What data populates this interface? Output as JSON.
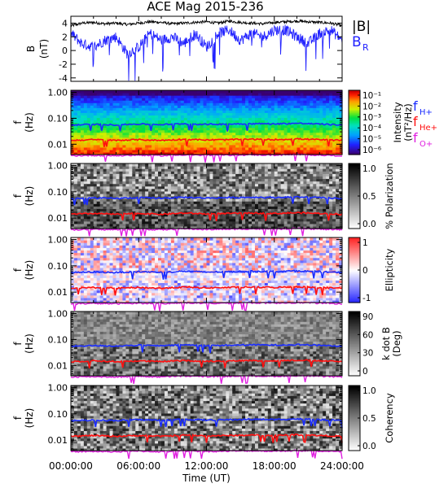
{
  "title": "ACE Mag 2015-236",
  "colors": {
    "B_total": "#000000",
    "B_R": "#2222ff",
    "f_H": "#1a2cff",
    "f_He": "#ff1010",
    "f_O": "#e020e0"
  },
  "chart_data": [
    {
      "id": "mag",
      "type": "line",
      "ylabel": "B",
      "yunit": "(nT)",
      "ylim": [
        -4.5,
        5
      ],
      "yticks": [
        "4",
        "2",
        "0",
        "-2",
        "-4"
      ],
      "yticks_values": [
        4,
        2,
        0,
        -2,
        -4
      ],
      "legend": [
        "|B|",
        "B",
        "R"
      ],
      "series": [
        {
          "name": "|B|",
          "key": "B_total",
          "x": [
            0,
            1,
            2,
            3,
            4,
            5,
            6,
            7,
            8,
            9,
            10,
            11,
            12,
            13,
            14,
            15,
            16,
            17,
            18,
            19,
            20,
            21,
            22,
            23,
            24
          ],
          "values": [
            3.6,
            4.0,
            4.1,
            3.9,
            4.0,
            3.8,
            4.0,
            4.2,
            4.1,
            3.9,
            4.0,
            4.1,
            4.2,
            4.0,
            4.3,
            4.1,
            4.0,
            3.9,
            4.1,
            4.2,
            4.3,
            4.2,
            4.1,
            4.0,
            3.6
          ]
        },
        {
          "name": "BR",
          "key": "B_R",
          "x": [
            0,
            1,
            2,
            3,
            4,
            5,
            6,
            7,
            8,
            9,
            10,
            11,
            12,
            13,
            14,
            15,
            16,
            17,
            18,
            19,
            20,
            21,
            22,
            23,
            24
          ],
          "values": [
            2.5,
            1.0,
            0.5,
            1.5,
            2.0,
            -0.5,
            0.5,
            2.5,
            1.5,
            2.0,
            1.0,
            2.5,
            0.5,
            2.5,
            3.0,
            1.5,
            2.5,
            2.0,
            3.0,
            3.0,
            2.0,
            1.0,
            2.5,
            3.0,
            1.5
          ]
        }
      ]
    },
    {
      "id": "intensity",
      "type": "heatmap",
      "ylabel": "f",
      "yunit": "(Hz)",
      "ylim": [
        0.004,
        1.2
      ],
      "yscale": "log",
      "yticks": [
        "1.00",
        "0.10",
        "0.01"
      ],
      "yticks_values": [
        1.0,
        0.1,
        0.01
      ],
      "colorbar_label": "Intensity",
      "colorbar_unit": "(nT²/Hz)",
      "colorbar_ticks": [
        "10⁻¹",
        "10⁻²",
        "10⁻³",
        "10⁻⁴",
        "10⁻⁵",
        "10⁻⁶"
      ],
      "legend": [
        "f",
        "H+",
        "f",
        "He+",
        "f",
        "O+"
      ]
    },
    {
      "id": "polarization",
      "type": "heatmap",
      "ylabel": "f",
      "yunit": "(Hz)",
      "ylim": [
        0.004,
        1.2
      ],
      "yscale": "log",
      "yticks": [
        "1.00",
        "0.10",
        "0.01"
      ],
      "yticks_values": [
        1.0,
        0.1,
        0.01
      ],
      "colorbar_label": "% Polarization",
      "colorbar_ticks": [
        "1.0",
        "0.5",
        "0.0"
      ]
    },
    {
      "id": "ellipticity",
      "type": "heatmap",
      "ylabel": "f",
      "yunit": "(Hz)",
      "ylim": [
        0.004,
        1.2
      ],
      "yscale": "log",
      "yticks": [
        "1.00",
        "0.10",
        "0.01"
      ],
      "yticks_values": [
        1.0,
        0.1,
        0.01
      ],
      "colorbar_label": "Ellipticity",
      "colorbar_ticks": [
        "1",
        "0",
        "-1"
      ]
    },
    {
      "id": "kdotb",
      "type": "heatmap",
      "ylabel": "f",
      "yunit": "(Hz)",
      "ylim": [
        0.004,
        1.2
      ],
      "yscale": "log",
      "yticks": [
        "1.00",
        "0.10",
        "0.01"
      ],
      "yticks_values": [
        1.0,
        0.1,
        0.01
      ],
      "colorbar_label": "k dot B",
      "colorbar_unit": "(Deg)",
      "colorbar_ticks": [
        "90",
        "60",
        "30",
        "0"
      ]
    },
    {
      "id": "coherency",
      "type": "heatmap",
      "ylabel": "f",
      "yunit": "(Hz)",
      "ylim": [
        0.004,
        1.2
      ],
      "yscale": "log",
      "yticks": [
        "1.00",
        "0.10",
        "0.01"
      ],
      "yticks_values": [
        1.0,
        0.1,
        0.01
      ],
      "colorbar_label": "Coherency",
      "colorbar_ticks": [
        "1.0",
        "0.5",
        "0.0"
      ]
    }
  ],
  "gyrofrequencies": {
    "x": [
      0,
      2,
      4,
      6,
      8,
      10,
      12,
      14,
      16,
      18,
      20,
      22,
      24
    ],
    "f_H": [
      0.055,
      0.058,
      0.056,
      0.06,
      0.057,
      0.062,
      0.058,
      0.06,
      0.062,
      0.061,
      0.064,
      0.06,
      0.055
    ],
    "f_He": [
      0.014,
      0.015,
      0.014,
      0.015,
      0.014,
      0.0155,
      0.0145,
      0.015,
      0.0155,
      0.015,
      0.016,
      0.015,
      0.014
    ],
    "f_O": [
      0.0036,
      0.0037,
      0.0036,
      0.0038,
      0.0036,
      0.0039,
      0.0037,
      0.0038,
      0.0039,
      0.0038,
      0.004,
      0.0038,
      0.0036
    ]
  },
  "x_axis": {
    "label": "Time (UT)",
    "ticks": [
      "00:00:00",
      "06:00:00",
      "12:00:00",
      "18:00:00",
      "24:00:00"
    ],
    "ticks_values": [
      0,
      6,
      12,
      18,
      24
    ],
    "xlim": [
      0,
      24
    ]
  }
}
